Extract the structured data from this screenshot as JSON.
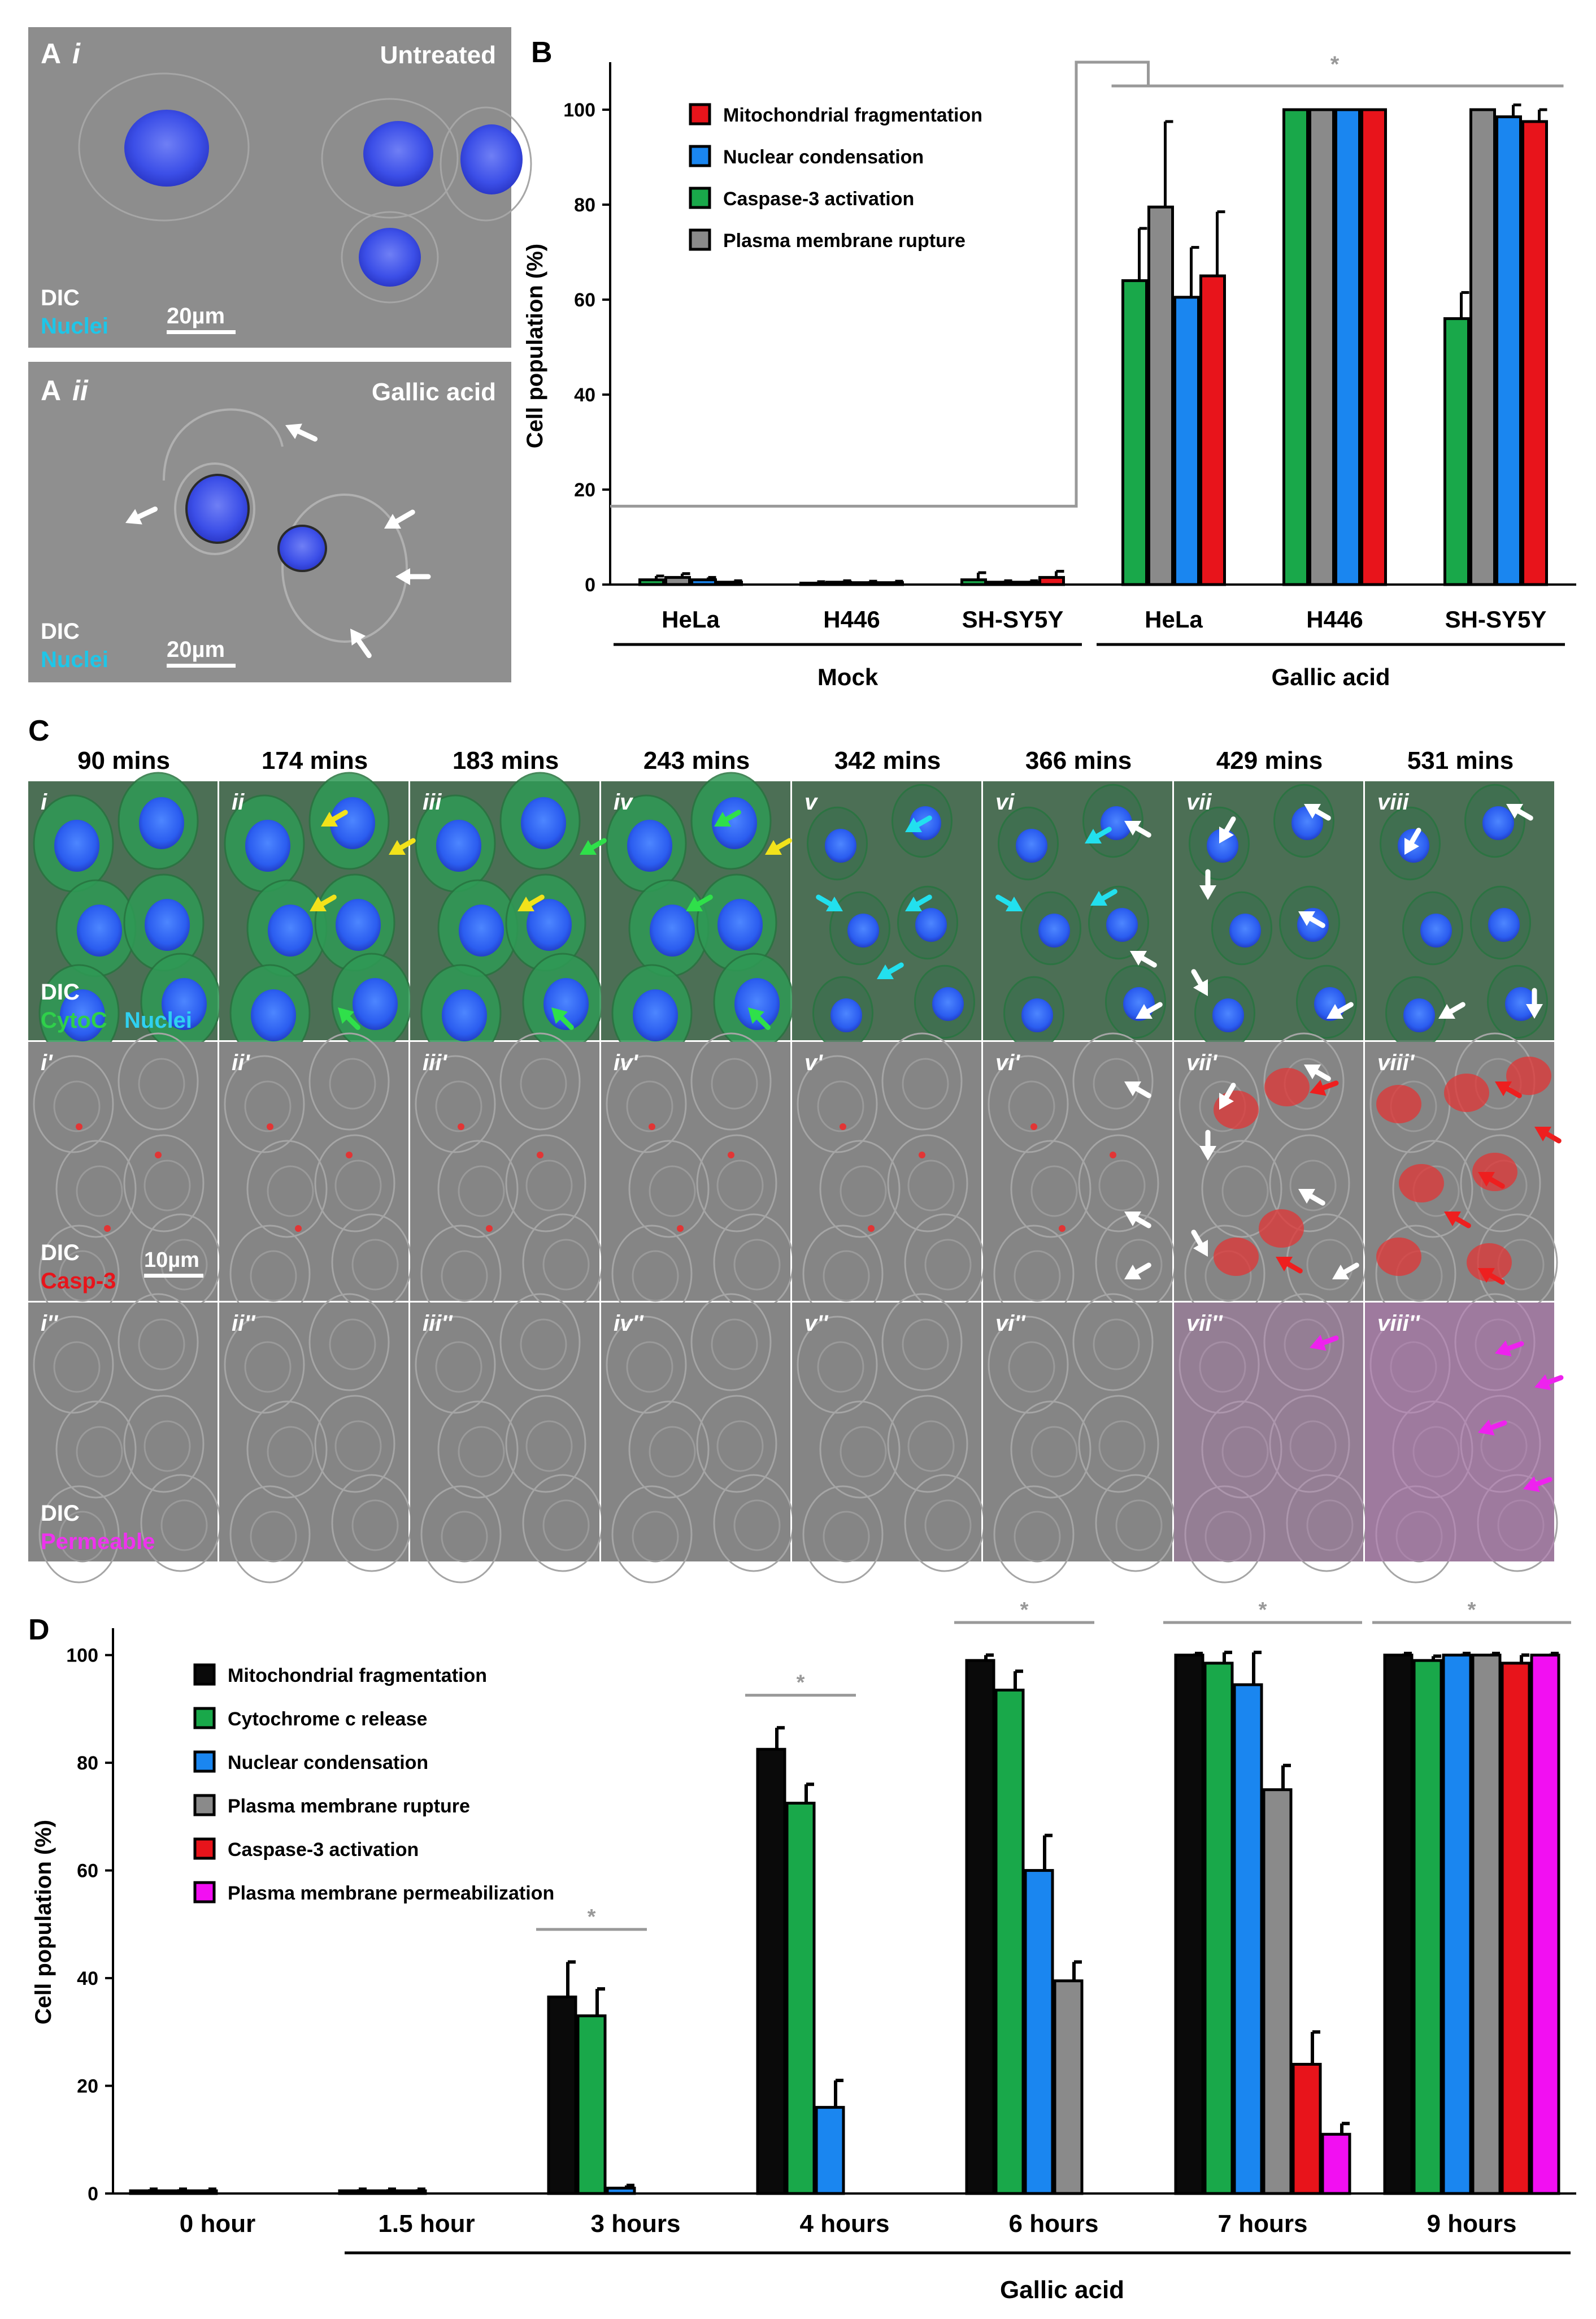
{
  "panel_letters": {
    "b": "B",
    "c": "C",
    "d": "D"
  },
  "micrographs": {
    "ai": {
      "letter": "A",
      "roman": "i",
      "condition": "Untreated",
      "stain1": "DIC",
      "stain2": "Nuclei",
      "scale": "20µm"
    },
    "aii": {
      "letter": "A",
      "roman": "ii",
      "condition": "Gallic acid",
      "stain1": "DIC",
      "stain2": "Nuclei",
      "scale": "20µm"
    }
  },
  "timelapse": {
    "times": [
      "90 mins",
      "174 mins",
      "183 mins",
      "243 mins",
      "342 mins",
      "366 mins",
      "429 mins",
      "531 mins"
    ],
    "row1_tags": [
      "i",
      "ii",
      "iii",
      "iv",
      "v",
      "vi",
      "vii",
      "viii"
    ],
    "row2_tags": [
      "i'",
      "ii'",
      "iii'",
      "iv'",
      "v'",
      "vi'",
      "vii'",
      "viii'"
    ],
    "row3_tags": [
      "i''",
      "ii''",
      "iii''",
      "iv''",
      "v''",
      "vi''",
      "vii''",
      "viii''"
    ],
    "row1_stains": [
      "DIC",
      "CytoC",
      "Nuclei"
    ],
    "row2_stains": [
      "DIC",
      "Casp-3"
    ],
    "row3_stains": [
      "DIC",
      "Permeable"
    ],
    "scale": "10µm"
  },
  "colors": {
    "red": "#e8141b",
    "blue": "#1a86f0",
    "green": "#19a84a",
    "gray": "#8a8a8a",
    "black": "#0a0a0a",
    "magenta": "#f20ff2",
    "bracket": "#999999"
  },
  "chart_data": [
    {
      "type": "bar",
      "panel": "B",
      "ylabel": "Cell population (%)",
      "ylim": [
        0,
        110
      ],
      "yticks": [
        0,
        20,
        40,
        60,
        80,
        100
      ],
      "categories": [
        "HeLa",
        "H446",
        "SH-SY5Y",
        "HeLa",
        "H446",
        "SH-SY5Y"
      ],
      "groups": [
        {
          "label": "Mock",
          "from": 0,
          "to": 2
        },
        {
          "label": "Gallic acid",
          "from": 3,
          "to": 5
        }
      ],
      "significance": "*",
      "series": [
        {
          "name": "Caspase-3 activation",
          "color": "#19a84a",
          "values": [
            1,
            0.3,
            1,
            64,
            100,
            56
          ],
          "errors": [
            0.8,
            0.3,
            1.5,
            11,
            0,
            5.5
          ]
        },
        {
          "name": "Plasma membrane rupture",
          "color": "#8a8a8a",
          "values": [
            1.5,
            0.5,
            0.5,
            79.5,
            100,
            100
          ],
          "errors": [
            0.8,
            0.3,
            0.3,
            18,
            0,
            0
          ]
        },
        {
          "name": "Nuclear condensation",
          "color": "#1a86f0",
          "values": [
            1,
            0.4,
            0.5,
            60.5,
            100,
            98.5
          ],
          "errors": [
            0.5,
            0.3,
            0.3,
            10.5,
            0,
            2.5
          ]
        },
        {
          "name": "Mitochondrial fragmentation",
          "color": "#e8141b",
          "values": [
            0.5,
            0.4,
            1.5,
            65,
            100,
            97.5
          ],
          "errors": [
            0.3,
            0.3,
            1.3,
            13.5,
            0,
            2.5
          ]
        }
      ],
      "legend_order": [
        "Mitochondrial fragmentation",
        "Nuclear condensation",
        "Caspase-3 activation",
        "Plasma membrane rupture"
      ],
      "legend_position": "top-left"
    },
    {
      "type": "bar",
      "panel": "D",
      "ylabel": "Cell population (%)",
      "ylim": [
        0,
        105
      ],
      "yticks": [
        0,
        20,
        40,
        60,
        80,
        100
      ],
      "categories": [
        "0 hour",
        "1.5 hour",
        "3 hours",
        "4 hours",
        "6 hours",
        "7 hours",
        "9 hours"
      ],
      "group": {
        "label": "Gallic acid",
        "from": 1,
        "to": 6
      },
      "significance": "*",
      "significant_categories": [
        2,
        3,
        4,
        5,
        6
      ],
      "series": [
        {
          "name": "Mitochondrial fragmentation",
          "color": "#0a0a0a",
          "values": [
            0.5,
            0.5,
            36.5,
            82.5,
            99,
            100,
            100
          ],
          "errors": [
            0.3,
            0.3,
            6.5,
            4,
            1,
            0.3,
            0.3
          ]
        },
        {
          "name": "Cytochrome c release",
          "color": "#19a84a",
          "values": [
            0.5,
            0.5,
            33,
            72.5,
            93.5,
            98.5,
            99
          ],
          "errors": [
            0.3,
            0.3,
            5,
            3.5,
            3.5,
            2,
            0.8
          ]
        },
        {
          "name": "Nuclear condensation",
          "color": "#1a86f0",
          "values": [
            0.5,
            0.5,
            1,
            16,
            60,
            94.5,
            100
          ],
          "errors": [
            0.3,
            0.3,
            0.5,
            5,
            6.5,
            6,
            0.3
          ]
        },
        {
          "name": "Plasma membrane rupture",
          "color": "#8a8a8a",
          "values": [
            0,
            0,
            0,
            0,
            39.5,
            75,
            100
          ],
          "errors": [
            0,
            0,
            0,
            0,
            3.5,
            4.5,
            0.3
          ]
        },
        {
          "name": "Caspase-3 activation",
          "color": "#e8141b",
          "values": [
            0,
            0,
            0,
            0,
            0,
            24,
            98.5
          ],
          "errors": [
            0,
            0,
            0,
            0,
            0,
            6,
            1.5
          ]
        },
        {
          "name": "Plasma membrane permeabilization",
          "color": "#f20ff2",
          "values": [
            0,
            0,
            0,
            0,
            0,
            11,
            100
          ],
          "errors": [
            0,
            0,
            0,
            0,
            0,
            2,
            0.3
          ]
        }
      ],
      "legend_order": [
        "Mitochondrial fragmentation",
        "Cytochrome c release",
        "Nuclear condensation",
        "Plasma membrane rupture",
        "Caspase-3 activation",
        "Plasma membrane permeabilization"
      ],
      "legend_position": "top-left"
    }
  ]
}
